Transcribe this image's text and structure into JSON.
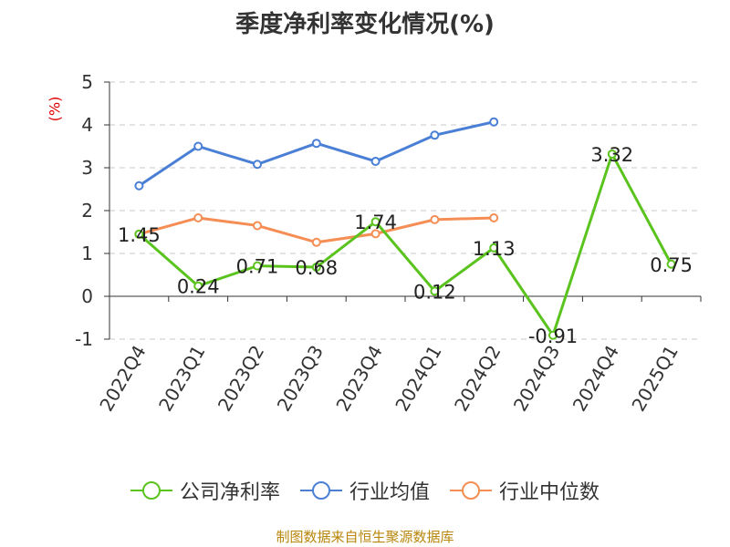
{
  "chart_data": {
    "type": "line",
    "title": "季度净利率变化情况(%)",
    "ylabel": "(%)",
    "categories": [
      "2022Q4",
      "2023Q1",
      "2023Q2",
      "2023Q3",
      "2023Q4",
      "2024Q1",
      "2024Q2",
      "2024Q3",
      "2024Q4",
      "2025Q1"
    ],
    "yticks": [
      "5",
      "4",
      "3",
      "2",
      "1",
      "0",
      "-1"
    ],
    "ylim": [
      -1,
      5
    ],
    "grid": true,
    "legend_position": "bottom",
    "series": [
      {
        "name": "公司净利率",
        "color": "#5ac31d",
        "show_labels": true,
        "values": [
          1.45,
          0.24,
          0.71,
          0.68,
          1.74,
          0.12,
          1.13,
          -0.91,
          3.32,
          0.75
        ],
        "labels": [
          "1.45",
          "0.24",
          "0.71",
          "0.68",
          "1.74",
          "0.12",
          "1.13",
          "-0.91",
          "3.32",
          "0.75"
        ]
      },
      {
        "name": "行业均值",
        "color": "#4a7fd6",
        "show_labels": false,
        "values": [
          2.58,
          3.5,
          3.08,
          3.57,
          3.15,
          3.76,
          4.07,
          null,
          null,
          null
        ]
      },
      {
        "name": "行业中位数",
        "color": "#f58e55",
        "show_labels": false,
        "values": [
          1.45,
          1.83,
          1.65,
          1.26,
          1.46,
          1.79,
          1.83,
          null,
          null,
          null
        ]
      }
    ],
    "source": "制图数据来自恒生聚源数据库"
  }
}
